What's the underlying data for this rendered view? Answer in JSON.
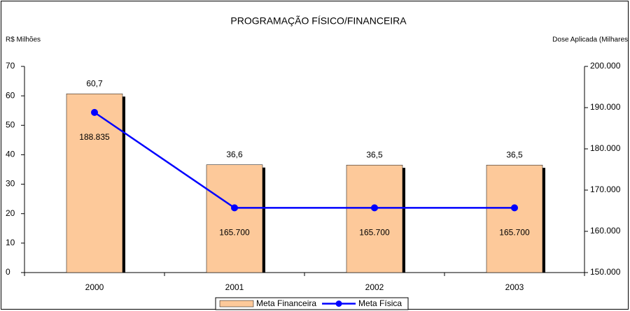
{
  "chart_data": {
    "type": "bar",
    "title": "PROGRAMAÇÃO FÍSICO/FINANCEIRA",
    "y_label": "R$ Milhões",
    "y2_label": "Dose Aplicada (Milhares",
    "categories": [
      "2000",
      "2001",
      "2002",
      "2003"
    ],
    "series": [
      {
        "name": "Meta Financeira",
        "type": "bar",
        "color": "#fdc99a",
        "values": [
          60.7,
          36.6,
          36.5,
          36.5
        ],
        "value_labels": [
          "60,7",
          "36,6",
          "36,5",
          "36,5"
        ]
      },
      {
        "name": "Meta Física",
        "type": "line",
        "axis": "y2",
        "color": "#0000ff",
        "values": [
          188835,
          165700,
          165700,
          165700
        ],
        "value_labels": [
          "188.835",
          "165.700",
          "165.700",
          "165.700"
        ]
      }
    ],
    "ylim": [
      0,
      70
    ],
    "yticks": [
      0,
      10,
      20,
      30,
      40,
      50,
      60,
      70
    ],
    "y2lim": [
      150000,
      200000
    ],
    "y2ticks": [
      {
        "value": 150000,
        "label": "150.000"
      },
      {
        "value": 160000,
        "label": "160.000"
      },
      {
        "value": 170000,
        "label": "170.000"
      },
      {
        "value": 180000,
        "label": "180.000"
      },
      {
        "value": 190000,
        "label": "190.000"
      },
      {
        "value": 200000,
        "label": "200.000"
      }
    ],
    "legend": "bottom"
  }
}
